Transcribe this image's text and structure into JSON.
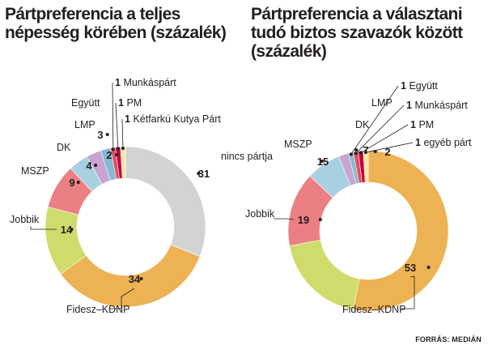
{
  "source": "FORRÁS: MEDIÁN",
  "chart_data": [
    {
      "type": "donut",
      "title": "Pártpreferencia a teljes\nnépesség körében (százalék)",
      "categories": [
        "nincs pártja",
        "Fidesz–KDNP",
        "Jobbik",
        "MSZP",
        "DK",
        "LMP",
        "Együtt",
        "Munkáspárt",
        "PM",
        "Kétfarkú Kutya Párt"
      ],
      "values": [
        31,
        34,
        14,
        9,
        4,
        3,
        2,
        1,
        1,
        1
      ],
      "colors": [
        "#d2d3d5",
        "#edb253",
        "#cfdc6b",
        "#ec7f84",
        "#a9d0e0",
        "#c7a5d2",
        "#86b9d2",
        "#e04d5d",
        "#c3003a",
        "#f4e6a6"
      ]
    },
    {
      "type": "donut",
      "title": "Pártpreferencia a választani\ntudó biztos szavazók között\n(százalék)",
      "categories": [
        "Fidesz–KDNP",
        "Jobbik",
        "MSZP",
        "DK",
        "LMP",
        "Együtt",
        "Munkáspárt",
        "PM",
        "egyéb párt"
      ],
      "values": [
        53,
        19,
        15,
        7,
        2,
        1,
        1,
        1,
        1
      ],
      "colors": [
        "#edb253",
        "#cfdc6b",
        "#ec7f84",
        "#a9d0e0",
        "#c7a5d2",
        "#86b9d2",
        "#e04d5d",
        "#c3003a",
        "#f4e6a6"
      ]
    }
  ]
}
